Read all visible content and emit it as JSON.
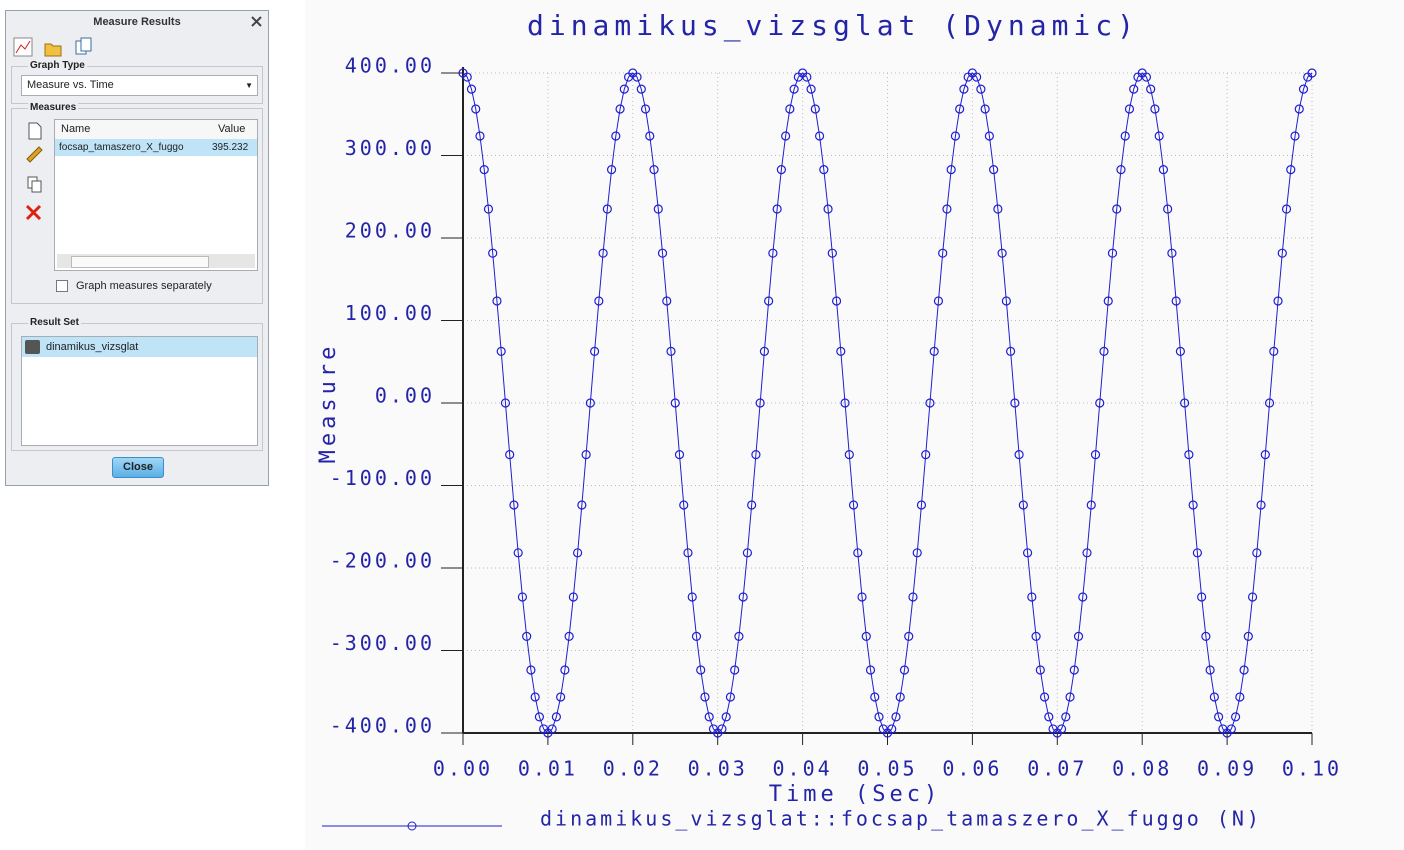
{
  "dialog": {
    "title": "Measure Results",
    "graph_type_label": "Graph Type",
    "graph_type": "Measure vs. Time",
    "measures_label": "Measures",
    "table": {
      "headers": [
        "Name",
        "Value"
      ],
      "rows": [
        [
          "focsap_tamaszero_X_fuggo",
          "395.232"
        ]
      ]
    },
    "checkbox": "Graph measures separately",
    "result_set_label": "Result Set",
    "result_set": "dinamikus_vizsglat",
    "close": "Close"
  },
  "chart_data": {
    "type": "scatter",
    "title": "dinamikus_vizsglat (Dynamic)",
    "x_label": "Time (Sec)",
    "y_label": "Measure",
    "x": [
      0,
      0.0005,
      0.001,
      0.0015,
      0.002,
      0.0025,
      0.003,
      0.0035,
      0.004,
      0.0045,
      0.005,
      0.0055,
      0.006,
      0.0065,
      0.007,
      0.0075,
      0.008,
      0.0085,
      0.009,
      0.0095,
      0.01,
      0.0105,
      0.011,
      0.0115,
      0.012,
      0.0125,
      0.013,
      0.0135,
      0.014,
      0.0145,
      0.015,
      0.0155,
      0.016,
      0.0165,
      0.017,
      0.0175,
      0.018,
      0.0185,
      0.019,
      0.0195,
      0.02,
      0.0205,
      0.021,
      0.0215,
      0.022,
      0.0225,
      0.023,
      0.0235,
      0.024,
      0.0245,
      0.025,
      0.0255,
      0.026,
      0.0265,
      0.027,
      0.0275,
      0.028,
      0.0285,
      0.029,
      0.0295,
      0.03,
      0.0305,
      0.031,
      0.0315,
      0.032,
      0.0325,
      0.033,
      0.0335,
      0.034,
      0.0345,
      0.035,
      0.0355,
      0.036,
      0.0365,
      0.037,
      0.0375,
      0.038,
      0.0385,
      0.039,
      0.0395,
      0.04,
      0.0405,
      0.041,
      0.0415,
      0.042,
      0.0425,
      0.043,
      0.0435,
      0.044,
      0.0445,
      0.045,
      0.0455,
      0.046,
      0.0465,
      0.047,
      0.0475,
      0.048,
      0.0485,
      0.049,
      0.0495,
      0.05,
      0.0505,
      0.051,
      0.0515,
      0.052,
      0.0525,
      0.053,
      0.0535,
      0.054,
      0.0545,
      0.055,
      0.0555,
      0.056,
      0.0565,
      0.057,
      0.0575,
      0.058,
      0.0585,
      0.059,
      0.0595,
      0.06,
      0.0605,
      0.061,
      0.0615,
      0.062,
      0.0625,
      0.063,
      0.0635,
      0.064,
      0.0645,
      0.065,
      0.0655,
      0.066,
      0.0665,
      0.067,
      0.0675,
      0.068,
      0.0685,
      0.069,
      0.0695,
      0.07,
      0.0705,
      0.071,
      0.0715,
      0.072,
      0.0725,
      0.073,
      0.0735,
      0.074,
      0.0745,
      0.075,
      0.0755,
      0.076,
      0.0765,
      0.077,
      0.0775,
      0.078,
      0.0785,
      0.079,
      0.0795,
      0.08,
      0.0805,
      0.081,
      0.0815,
      0.082,
      0.0825,
      0.083,
      0.0835,
      0.084,
      0.0845,
      0.085,
      0.0855,
      0.086,
      0.0865,
      0.087,
      0.0875,
      0.088,
      0.0885,
      0.089,
      0.0895,
      0.09,
      0.0905,
      0.091,
      0.0915,
      0.092,
      0.0925,
      0.093,
      0.0935,
      0.094,
      0.0945,
      0.095,
      0.0955,
      0.096,
      0.0965,
      0.097,
      0.0975,
      0.098,
      0.0985,
      0.099,
      0.0995,
      0.1
    ],
    "series": [
      {
        "name": "dinamikus_vizsglat::focsap_tamaszero_X_fuggo (N)",
        "color": "#1e1ed2",
        "values": [
          400,
          395.08,
          380.42,
          356.4,
          323.61,
          282.84,
          235.11,
          181.6,
          123.61,
          62.57,
          0,
          -62.57,
          -123.61,
          -181.6,
          -235.11,
          -282.84,
          -323.61,
          -356.4,
          -380.42,
          -395.08,
          -400,
          -395.08,
          -380.42,
          -356.4,
          -323.61,
          -282.84,
          -235.11,
          -181.6,
          -123.61,
          -62.57,
          0,
          62.57,
          123.61,
          181.6,
          235.11,
          282.84,
          323.61,
          356.4,
          380.42,
          395.08,
          400,
          395.08,
          380.42,
          356.4,
          323.61,
          282.84,
          235.11,
          181.6,
          123.61,
          62.57,
          0,
          -62.57,
          -123.61,
          -181.6,
          -235.11,
          -282.84,
          -323.61,
          -356.4,
          -380.42,
          -395.08,
          -400,
          -395.08,
          -380.42,
          -356.4,
          -323.61,
          -282.84,
          -235.11,
          -181.6,
          -123.61,
          -62.57,
          0,
          62.57,
          123.61,
          181.6,
          235.11,
          282.84,
          323.61,
          356.4,
          380.42,
          395.08,
          400,
          395.08,
          380.42,
          356.4,
          323.61,
          282.84,
          235.11,
          181.6,
          123.61,
          62.57,
          0,
          -62.57,
          -123.61,
          -181.6,
          -235.11,
          -282.84,
          -323.61,
          -356.4,
          -380.42,
          -395.08,
          -400,
          -395.08,
          -380.42,
          -356.4,
          -323.61,
          -282.84,
          -235.11,
          -181.6,
          -123.61,
          -62.57,
          0,
          62.57,
          123.61,
          181.6,
          235.11,
          282.84,
          323.61,
          356.4,
          380.42,
          395.08,
          400,
          395.08,
          380.42,
          356.4,
          323.61,
          282.84,
          235.11,
          181.6,
          123.61,
          62.57,
          0,
          -62.57,
          -123.61,
          -181.6,
          -235.11,
          -282.84,
          -323.61,
          -356.4,
          -380.42,
          -395.08,
          -400,
          -395.08,
          -380.42,
          -356.4,
          -323.61,
          -282.84,
          -235.11,
          -181.6,
          -123.61,
          -62.57,
          0,
          62.57,
          123.61,
          181.6,
          235.11,
          282.84,
          323.61,
          356.4,
          380.42,
          395.08,
          400,
          395.08,
          380.42,
          356.4,
          323.61,
          282.84,
          235.11,
          181.6,
          123.61,
          62.57,
          0,
          -62.57,
          -123.61,
          -181.6,
          -235.11,
          -282.84,
          -323.61,
          -356.4,
          -380.42,
          -395.08,
          -400,
          -395.08,
          -380.42,
          -356.4,
          -323.61,
          -282.84,
          -235.11,
          -181.6,
          -123.61,
          -62.57,
          0,
          62.57,
          123.61,
          181.6,
          235.11,
          282.84,
          323.61,
          356.4,
          380.42,
          395.08,
          400
        ]
      }
    ],
    "xlim": [
      0,
      0.1
    ],
    "ylim": [
      -400,
      400
    ],
    "xticks": [
      {
        "value": 0,
        "label": "0.00"
      },
      {
        "value": 0.01,
        "label": "0.01"
      },
      {
        "value": 0.02,
        "label": "0.02"
      },
      {
        "value": 0.03,
        "label": "0.03"
      },
      {
        "value": 0.04,
        "label": "0.04"
      },
      {
        "value": 0.05,
        "label": "0.05"
      },
      {
        "value": 0.06,
        "label": "0.06"
      },
      {
        "value": 0.07,
        "label": "0.07"
      },
      {
        "value": 0.08,
        "label": "0.08"
      },
      {
        "value": 0.09,
        "label": "0.09"
      },
      {
        "value": 0.1,
        "label": "0.10"
      }
    ],
    "yticks": [
      {
        "value": 400,
        "label": "400.00"
      },
      {
        "value": 300,
        "label": "300.00"
      },
      {
        "value": 200,
        "label": "200.00"
      },
      {
        "value": 100,
        "label": "100.00"
      },
      {
        "value": 0,
        "label": "0.00"
      },
      {
        "value": -100,
        "label": "-100.00"
      },
      {
        "value": -200,
        "label": "-200.00"
      },
      {
        "value": -300,
        "label": "-300.00"
      },
      {
        "value": -400,
        "label": "-400.00"
      }
    ],
    "grid": true
  }
}
